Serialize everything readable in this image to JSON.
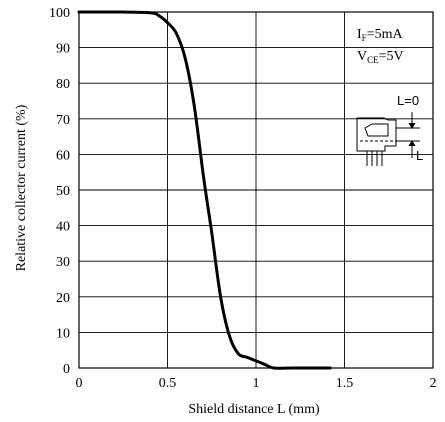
{
  "chart_data": {
    "type": "line",
    "title": "",
    "xlabel": "Shield distance L (mm)",
    "ylabel": "Relative collector current (%)",
    "xlim": [
      0,
      2
    ],
    "ylim": [
      0,
      100
    ],
    "x_ticks": [
      "0",
      "0.5",
      "1",
      "1.5",
      "2"
    ],
    "y_ticks": [
      "0",
      "10",
      "20",
      "30",
      "40",
      "50",
      "60",
      "70",
      "80",
      "90",
      "100"
    ],
    "grid": true,
    "series": [
      {
        "x": [
          0,
          0.2,
          0.4,
          0.45,
          0.5,
          0.55,
          0.6,
          0.65,
          0.7,
          0.72,
          0.75,
          0.8,
          0.85,
          0.9,
          0.95,
          1.0,
          1.05,
          1.1,
          1.2,
          1.3,
          1.42
        ],
        "y": [
          100,
          100,
          99.8,
          99,
          97,
          94,
          87,
          74,
          55,
          48,
          38,
          20,
          9,
          4,
          3,
          2,
          1,
          0,
          0,
          0,
          0
        ]
      }
    ],
    "conditions": {
      "if_main": "I",
      "if_sub": "F",
      "if_value": "=5mA",
      "vce_main": "V",
      "vce_sub": "CE",
      "vce_value": "=5V"
    },
    "inset_labels": {
      "l_zero": "L=0",
      "l": "L"
    },
    "colors": {
      "line": "#000000",
      "grid": "#000000",
      "background": "#ffffff"
    }
  }
}
